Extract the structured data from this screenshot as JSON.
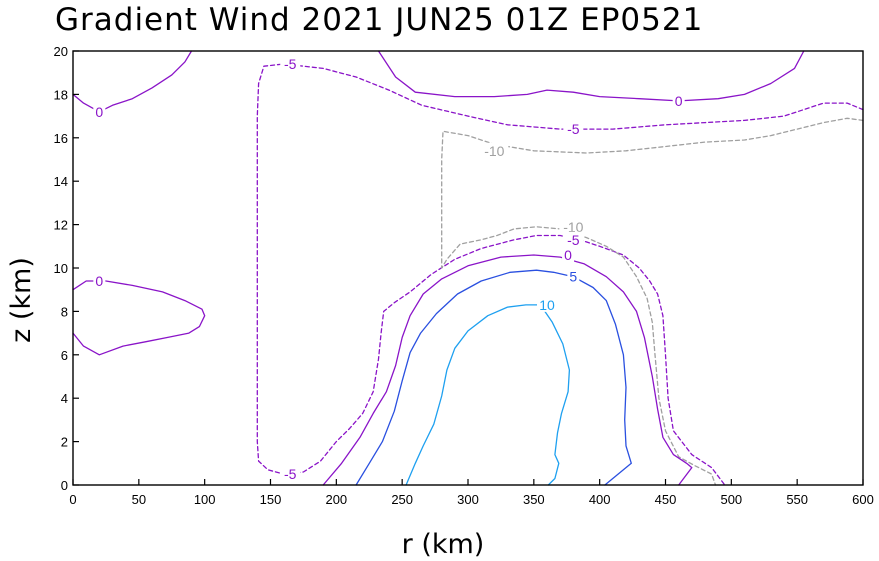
{
  "chart_data": {
    "type": "contour",
    "title": "Gradient Wind 2021 JUN25 01Z   EP0521",
    "xlabel": "r (km)",
    "ylabel": "z (km)",
    "xlim": [
      0,
      600
    ],
    "ylim": [
      0,
      20
    ],
    "xticks": [
      0,
      50,
      100,
      150,
      200,
      250,
      300,
      350,
      400,
      450,
      500,
      550,
      600
    ],
    "yticks": [
      0,
      2,
      4,
      6,
      8,
      10,
      12,
      14,
      16,
      18,
      20
    ],
    "xtick_labels": [
      "0",
      "50",
      "100",
      "150",
      "200",
      "250",
      "300",
      "350",
      "400",
      "450",
      "500",
      "550",
      "600"
    ],
    "ytick_labels": [
      "0",
      "2",
      "4",
      "6",
      "8",
      "10",
      "12",
      "14",
      "16",
      "18",
      "20"
    ],
    "colors": {
      "neg10": "#a0a0a0",
      "neg5": "#8a14c8",
      "zero": "#8a14c8",
      "pos5": "#2a50e0",
      "pos10": "#1ea0f0"
    },
    "contours": [
      {
        "name": "zero-contour-top-left",
        "level": 0,
        "dashed": false,
        "color": "#8a14c8",
        "points": [
          [
            0,
            18
          ],
          [
            8,
            17.6
          ],
          [
            20,
            17.2
          ],
          [
            30,
            17.5
          ],
          [
            45,
            17.8
          ],
          [
            60,
            18.3
          ],
          [
            75,
            18.9
          ],
          [
            85,
            19.5
          ],
          [
            90,
            20
          ]
        ]
      },
      {
        "name": "zero-contour-top-right",
        "level": 0,
        "dashed": false,
        "color": "#8a14c8",
        "points": [
          [
            232,
            20
          ],
          [
            245,
            18.8
          ],
          [
            260,
            18.1
          ],
          [
            290,
            17.9
          ],
          [
            320,
            17.9
          ],
          [
            345,
            18
          ],
          [
            360,
            18.2
          ],
          [
            380,
            18.1
          ],
          [
            400,
            17.9
          ],
          [
            430,
            17.8
          ],
          [
            460,
            17.7
          ],
          [
            490,
            17.8
          ],
          [
            510,
            18
          ],
          [
            530,
            18.5
          ],
          [
            548,
            19.2
          ],
          [
            555,
            20
          ]
        ]
      },
      {
        "name": "neg5-contour-top",
        "level": -5,
        "dashed": true,
        "color": "#8a14c8",
        "points": [
          [
            600,
            17.3
          ],
          [
            588,
            17.6
          ],
          [
            570,
            17.6
          ],
          [
            555,
            17.3
          ],
          [
            540,
            17
          ],
          [
            510,
            16.8
          ],
          [
            480,
            16.7
          ],
          [
            450,
            16.6
          ],
          [
            410,
            16.4
          ],
          [
            370,
            16.4
          ],
          [
            330,
            16.6
          ],
          [
            300,
            17
          ],
          [
            265,
            17.5
          ],
          [
            240,
            18.2
          ],
          [
            215,
            18.8
          ],
          [
            190,
            19.2
          ],
          [
            160,
            19.4
          ],
          [
            145,
            19.3
          ],
          [
            141,
            18.5
          ],
          [
            140,
            17
          ],
          [
            140,
            14
          ],
          [
            140,
            10
          ],
          [
            140,
            6
          ],
          [
            140,
            2
          ],
          [
            141,
            1.1
          ],
          [
            148,
            0.7
          ],
          [
            160,
            0.5
          ],
          [
            175,
            0.6
          ],
          [
            188,
            1.1
          ],
          [
            200,
            2
          ],
          [
            210,
            2.6
          ],
          [
            220,
            3.3
          ],
          [
            228,
            4.3
          ],
          [
            232,
            5.8
          ],
          [
            234,
            7
          ],
          [
            236,
            8
          ],
          [
            244,
            8.4
          ],
          [
            256,
            8.9
          ],
          [
            272,
            9.7
          ],
          [
            290,
            10.4
          ],
          [
            310,
            10.9
          ],
          [
            335,
            11.3
          ],
          [
            352,
            11.5
          ],
          [
            370,
            11.5
          ],
          [
            385,
            11.3
          ],
          [
            400,
            11
          ],
          [
            418,
            10.6
          ],
          [
            430,
            10
          ],
          [
            438,
            9.4
          ],
          [
            444,
            8.8
          ],
          [
            448,
            7.8
          ],
          [
            450,
            6
          ],
          [
            452,
            4
          ],
          [
            456,
            2.5
          ],
          [
            470,
            1.4
          ],
          [
            485,
            0.8
          ],
          [
            495,
            0
          ]
        ]
      },
      {
        "name": "neg10-contour",
        "level": -10,
        "dashed": true,
        "color": "#a0a0a0",
        "points": [
          [
            600,
            16.8
          ],
          [
            588,
            16.9
          ],
          [
            570,
            16.7
          ],
          [
            550,
            16.4
          ],
          [
            530,
            16.1
          ],
          [
            510,
            15.9
          ],
          [
            480,
            15.8
          ],
          [
            450,
            15.6
          ],
          [
            420,
            15.4
          ],
          [
            390,
            15.3
          ],
          [
            350,
            15.4
          ],
          [
            320,
            15.7
          ],
          [
            300,
            16.1
          ],
          [
            281,
            16.3
          ],
          [
            280,
            15
          ],
          [
            280,
            12
          ],
          [
            280,
            10
          ],
          [
            284,
            10.4
          ],
          [
            294,
            11.1
          ],
          [
            310,
            11.3
          ],
          [
            322,
            11.5
          ],
          [
            335,
            11.8
          ],
          [
            352,
            11.9
          ],
          [
            370,
            11.8
          ],
          [
            390,
            11.4
          ],
          [
            405,
            11
          ],
          [
            418,
            10.5
          ],
          [
            428,
            9.6
          ],
          [
            436,
            8.6
          ],
          [
            440,
            7.5
          ],
          [
            442,
            6
          ],
          [
            445,
            4
          ],
          [
            450,
            2.5
          ],
          [
            460,
            1.3
          ],
          [
            472,
            0.9
          ],
          [
            485,
            0.5
          ],
          [
            488,
            0
          ]
        ]
      },
      {
        "name": "zero-contour-left",
        "level": 0,
        "dashed": false,
        "color": "#8a14c8",
        "points": [
          [
            0,
            9
          ],
          [
            10,
            9.4
          ],
          [
            25,
            9.4
          ],
          [
            45,
            9.2
          ],
          [
            68,
            8.9
          ],
          [
            85,
            8.5
          ],
          [
            98,
            8.1
          ],
          [
            100,
            7.8
          ],
          [
            96,
            7.3
          ],
          [
            88,
            7
          ],
          [
            72,
            6.8
          ],
          [
            55,
            6.6
          ],
          [
            38,
            6.4
          ],
          [
            20,
            6
          ],
          [
            8,
            6.4
          ],
          [
            0,
            7
          ]
        ]
      },
      {
        "name": "zero-contour-core",
        "level": 0,
        "dashed": false,
        "color": "#8a14c8",
        "points": [
          [
            190,
            0
          ],
          [
            204,
            1
          ],
          [
            218,
            2.2
          ],
          [
            228,
            3.3
          ],
          [
            238,
            4.3
          ],
          [
            245,
            5.5
          ],
          [
            250,
            6.8
          ],
          [
            256,
            7.8
          ],
          [
            266,
            8.8
          ],
          [
            280,
            9.5
          ],
          [
            300,
            10.1
          ],
          [
            325,
            10.5
          ],
          [
            350,
            10.6
          ],
          [
            370,
            10.5
          ],
          [
            388,
            10.2
          ],
          [
            405,
            9.6
          ],
          [
            418,
            8.9
          ],
          [
            428,
            8
          ],
          [
            434,
            6.8
          ],
          [
            440,
            5
          ],
          [
            444,
            3.5
          ],
          [
            448,
            2.2
          ],
          [
            456,
            1.4
          ],
          [
            466,
            1
          ],
          [
            470,
            0.8
          ],
          [
            460,
            0
          ]
        ]
      },
      {
        "name": "pos5-contour",
        "level": 5,
        "dashed": false,
        "color": "#2a50e0",
        "points": [
          [
            215,
            0
          ],
          [
            225,
            1
          ],
          [
            235,
            2
          ],
          [
            244,
            3.4
          ],
          [
            250,
            4.8
          ],
          [
            256,
            6.1
          ],
          [
            264,
            7
          ],
          [
            276,
            7.9
          ],
          [
            292,
            8.8
          ],
          [
            310,
            9.4
          ],
          [
            332,
            9.8
          ],
          [
            352,
            9.9
          ],
          [
            365,
            9.8
          ],
          [
            380,
            9.6
          ],
          [
            395,
            9.1
          ],
          [
            405,
            8.5
          ],
          [
            412,
            7.4
          ],
          [
            418,
            6
          ],
          [
            420,
            4.5
          ],
          [
            419,
            3
          ],
          [
            420,
            1.8
          ],
          [
            424,
            1
          ],
          [
            404,
            0
          ]
        ]
      },
      {
        "name": "pos10-contour",
        "level": 10,
        "dashed": false,
        "color": "#1ea0f0",
        "points": [
          [
            253,
            0
          ],
          [
            260,
            1
          ],
          [
            266,
            1.8
          ],
          [
            274,
            2.8
          ],
          [
            280,
            4.1
          ],
          [
            284,
            5.3
          ],
          [
            290,
            6.3
          ],
          [
            300,
            7.1
          ],
          [
            315,
            7.8
          ],
          [
            330,
            8.2
          ],
          [
            344,
            8.3
          ],
          [
            355,
            8.3
          ],
          [
            364,
            7.5
          ],
          [
            372,
            6.5
          ],
          [
            377,
            5.3
          ],
          [
            376,
            4.3
          ],
          [
            371,
            3.3
          ],
          [
            368,
            2.4
          ],
          [
            366,
            1.4
          ],
          [
            369,
            1
          ],
          [
            366,
            0.3
          ],
          [
            361,
            0
          ]
        ]
      }
    ],
    "contour_labels": [
      {
        "name": "label-zero-top-left",
        "text": "0",
        "x": 20,
        "y": 17.2,
        "color": "#8a14c8"
      },
      {
        "name": "label-zero-top-right",
        "text": "0",
        "x": 460,
        "y": 17.7,
        "color": "#8a14c8"
      },
      {
        "name": "label-neg5-top",
        "text": "-5",
        "x": 165,
        "y": 19.4,
        "color": "#8a14c8"
      },
      {
        "name": "label-neg5-mid",
        "text": "-5",
        "x": 380,
        "y": 16.4,
        "color": "#8a14c8"
      },
      {
        "name": "label-neg10-top",
        "text": "-10",
        "x": 320,
        "y": 15.4,
        "color": "#a0a0a0"
      },
      {
        "name": "label-neg10-core",
        "text": "-10",
        "x": 380,
        "y": 11.9,
        "color": "#a0a0a0"
      },
      {
        "name": "label-neg5-core",
        "text": "-5",
        "x": 380,
        "y": 11.3,
        "color": "#8a14c8"
      },
      {
        "name": "label-zero-core",
        "text": "0",
        "x": 376,
        "y": 10.6,
        "color": "#8a14c8"
      },
      {
        "name": "label-pos5",
        "text": "5",
        "x": 380,
        "y": 9.6,
        "color": "#2a50e0"
      },
      {
        "name": "label-pos10",
        "text": "10",
        "x": 360,
        "y": 8.3,
        "color": "#1ea0f0"
      },
      {
        "name": "label-zero-left",
        "text": "0",
        "x": 20,
        "y": 9.4,
        "color": "#8a14c8"
      },
      {
        "name": "label-neg5-bottom",
        "text": "-5",
        "x": 165,
        "y": 0.5,
        "color": "#8a14c8"
      }
    ]
  }
}
